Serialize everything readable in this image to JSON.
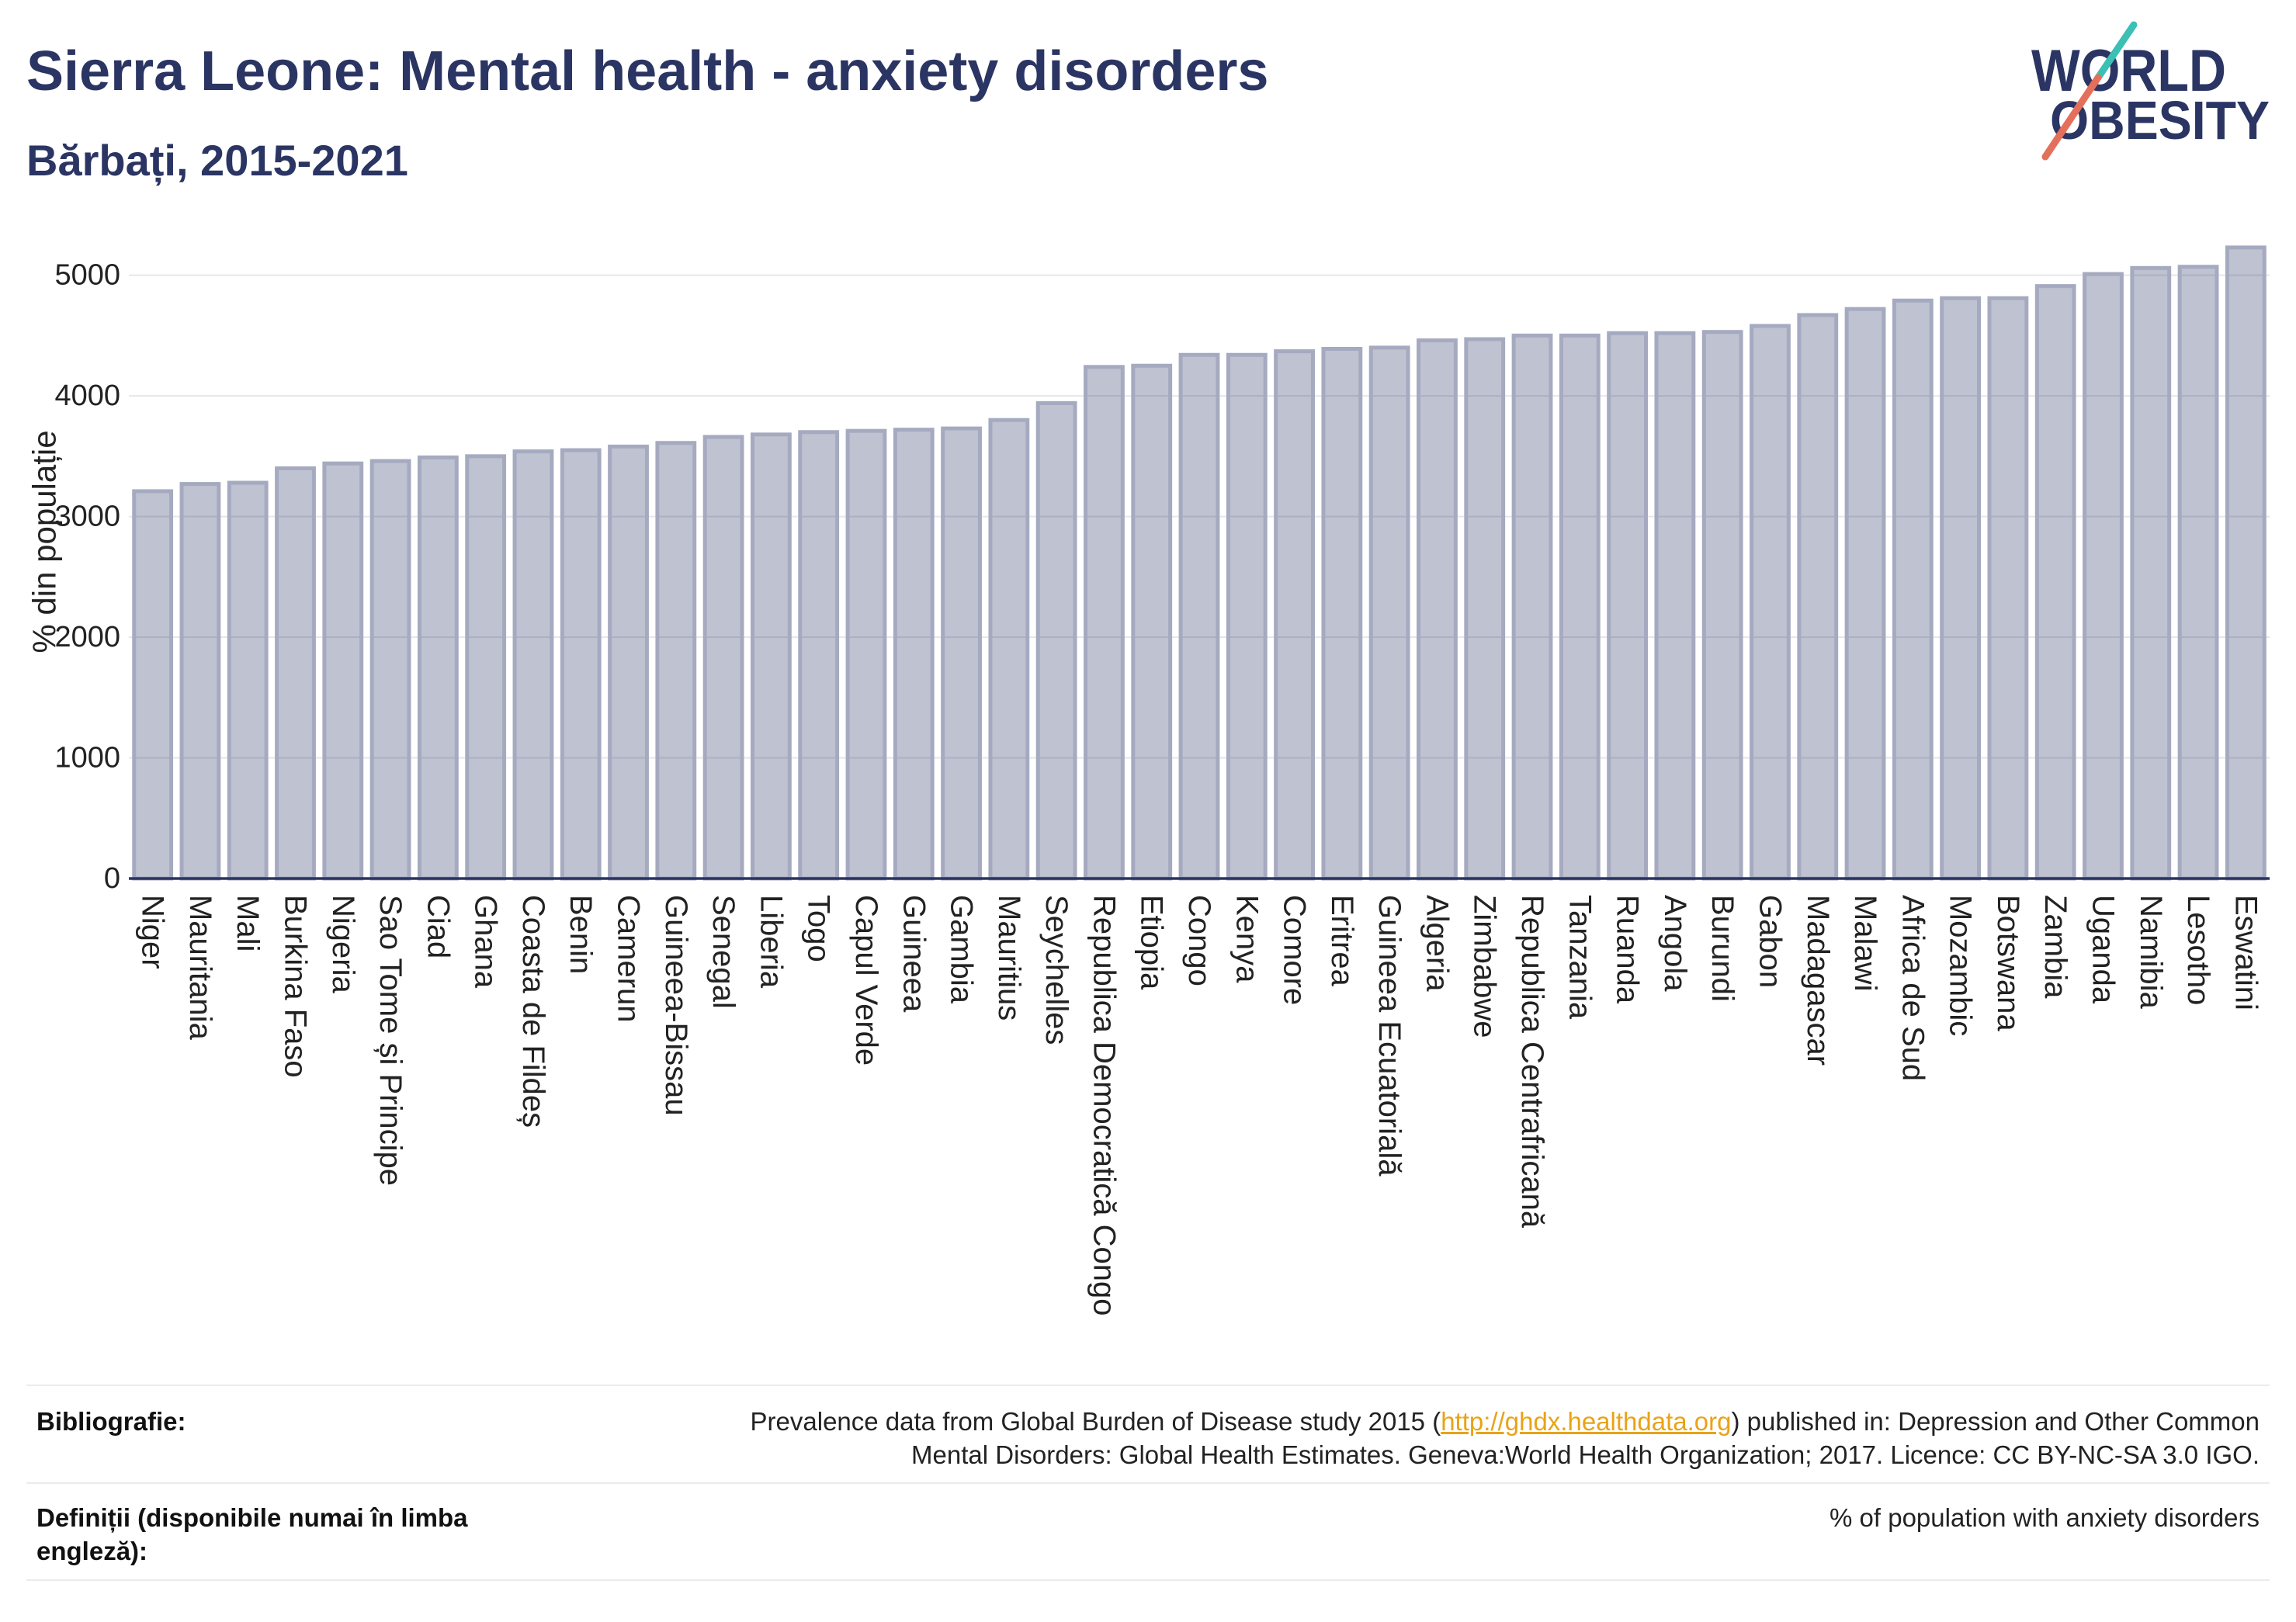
{
  "header": {
    "title": "Sierra Leone: Mental health - anxiety disorders",
    "subtitle": "Bărbați, 2015-2021"
  },
  "logo": {
    "line1": "WORLD",
    "line2": "OBESITY",
    "text_color": "#2b3563",
    "slash_top_color": "#3cbfb4",
    "slash_bottom_color": "#e4705c"
  },
  "chart_data": {
    "type": "bar",
    "categories": [
      "Niger",
      "Mauritania",
      "Mali",
      "Burkina Faso",
      "Nigeria",
      "Sao Tome și Principe",
      "Ciad",
      "Ghana",
      "Coasta de Fildeș",
      "Benin",
      "Camerun",
      "Guineea-Bissau",
      "Senegal",
      "Liberia",
      "Togo",
      "Capul Verde",
      "Guineea",
      "Gambia",
      "Mauritius",
      "Seychelles",
      "Republica Democratică Congo",
      "Etiopia",
      "Congo",
      "Kenya",
      "Comore",
      "Eritrea",
      "Guineea Ecuatorială",
      "Algeria",
      "Zimbabwe",
      "Republica Centrafricană",
      "Tanzania",
      "Ruanda",
      "Angola",
      "Burundi",
      "Gabon",
      "Madagascar",
      "Malawi",
      "Africa de Sud",
      "Mozambic",
      "Botswana",
      "Zambia",
      "Uganda",
      "Namibia",
      "Lesotho",
      "Eswatini"
    ],
    "values": [
      3210,
      3270,
      3280,
      3400,
      3440,
      3460,
      3490,
      3500,
      3540,
      3550,
      3580,
      3610,
      3660,
      3680,
      3700,
      3710,
      3720,
      3730,
      3800,
      3940,
      4240,
      4250,
      4340,
      4340,
      4370,
      4390,
      4400,
      4460,
      4470,
      4500,
      4500,
      4520,
      4520,
      4530,
      4580,
      4670,
      4720,
      4790,
      4810,
      4810,
      4910,
      5010,
      5060,
      5070,
      5230
    ],
    "ylabel": "% din populație",
    "ylim": [
      0,
      5300
    ],
    "yticks": [
      0,
      1000,
      2000,
      3000,
      4000,
      5000
    ],
    "grid": true,
    "bar_color": "#2b3563",
    "bar_border_color": "#a5aac0",
    "axis_color": "#2b3563"
  },
  "footer": {
    "bibliography": {
      "label": "Bibliografie:",
      "line1_before_link": "Prevalence data from Global Burden of Disease study 2015 (",
      "link": "http://ghdx.healthdata.org",
      "line1_after_link": ") published in: Depression and Other Common",
      "line2": "Mental Disorders: Global Health Estimates. Geneva:World Health Organization; 2017. Licence: CC BY-NC-SA 3.0 IGO."
    },
    "definitions": {
      "label": "Definiții (disponibile numai în limba engleză):",
      "text": "% of population with anxiety disorders"
    },
    "link_color": "#e8a317"
  }
}
